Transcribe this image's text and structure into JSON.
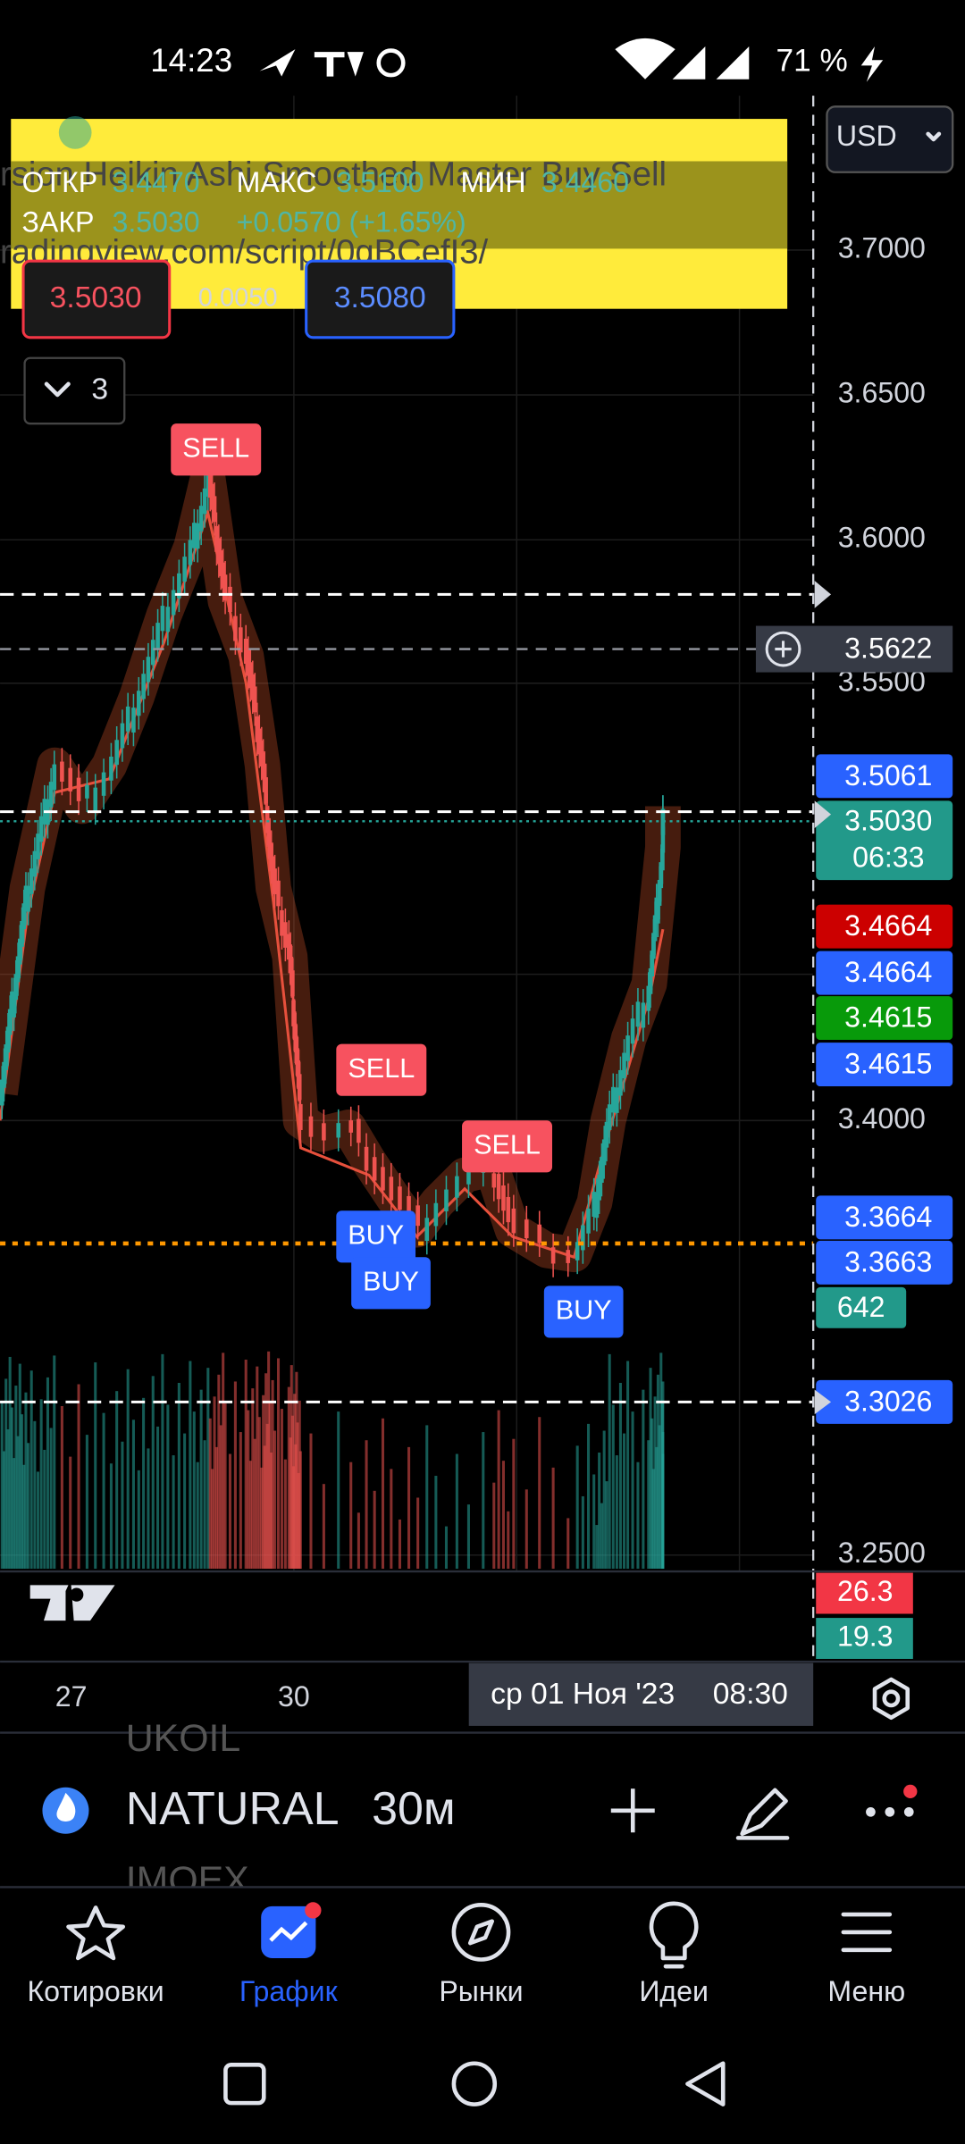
{
  "status_bar": {
    "time": "14:23",
    "battery": "71 %"
  },
  "chart_header": {
    "currency": "USD",
    "indicator_name": "rsion Heikin Ashi Smoothed Master Buy Sell",
    "indicator_url": "radingview.com/script/0gBCefI3/",
    "ohlc": {
      "open_label": "ОТКР",
      "open": "3.4470",
      "high_label": "МАКС",
      "high": "3.5100",
      "low_label": "МИН",
      "low": "3.4460",
      "close_label": "ЗАКР",
      "close": "3.5030",
      "change": "+0.0570 (+1.65%)"
    },
    "sell_price": "3.5030",
    "spread": "0.0050",
    "buy_price": "3.5080",
    "indicators_count": "3"
  },
  "price_axis": {
    "ticks": [
      "3.7000",
      "3.6500",
      "3.6000",
      "3.5500",
      "3.4000",
      "3.2500"
    ],
    "crosshair_price": "3.5622",
    "labels": [
      "3.5061",
      "3.5030",
      "3.4664",
      "3.4664",
      "3.4615",
      "3.4615",
      "3.3664",
      "3.3663",
      "642",
      "3.3026",
      "26.3",
      "19.3"
    ],
    "countdown": "06:33"
  },
  "signals": [
    "SELL",
    "SELL",
    "SELL",
    "BUY",
    "BUY",
    "BUY"
  ],
  "time_axis": {
    "ticks": [
      "27",
      "30"
    ],
    "cursor_date": "ср 01 Ноя '23",
    "cursor_time": "08:30"
  },
  "symbol_bar": {
    "prev_symbol": "UKOIL",
    "symbol": "NATURAL",
    "interval": "30м",
    "next_symbol": "IMOEX"
  },
  "nav": [
    "Котировки",
    "График",
    "Рынки",
    "Идеи",
    "Меню"
  ]
}
